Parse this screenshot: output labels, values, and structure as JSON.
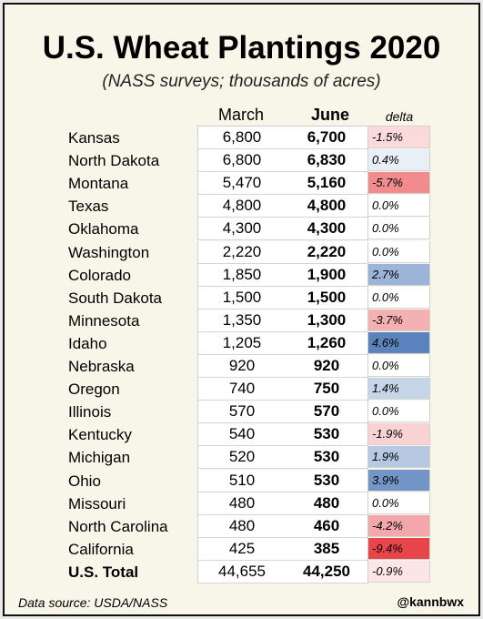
{
  "chart_data": {
    "type": "table",
    "title": "U.S. Wheat Plantings 2020",
    "subtitle": "(NASS surveys; thousands of acres)",
    "columns": [
      "March",
      "June",
      "delta"
    ],
    "rows": [
      {
        "state": "Kansas",
        "march": "6,800",
        "june": "6,700",
        "delta": "-1.5%",
        "delta_value": -1.5
      },
      {
        "state": "North Dakota",
        "march": "6,800",
        "june": "6,830",
        "delta": "0.4%",
        "delta_value": 0.4
      },
      {
        "state": "Montana",
        "march": "5,470",
        "june": "5,160",
        "delta": "-5.7%",
        "delta_value": -5.7
      },
      {
        "state": "Texas",
        "march": "4,800",
        "june": "4,800",
        "delta": "0.0%",
        "delta_value": 0.0
      },
      {
        "state": "Oklahoma",
        "march": "4,300",
        "june": "4,300",
        "delta": "0.0%",
        "delta_value": 0.0
      },
      {
        "state": "Washington",
        "march": "2,220",
        "june": "2,220",
        "delta": "0.0%",
        "delta_value": 0.0
      },
      {
        "state": "Colorado",
        "march": "1,850",
        "june": "1,900",
        "delta": "2.7%",
        "delta_value": 2.7
      },
      {
        "state": "South Dakota",
        "march": "1,500",
        "june": "1,500",
        "delta": "0.0%",
        "delta_value": 0.0
      },
      {
        "state": "Minnesota",
        "march": "1,350",
        "june": "1,300",
        "delta": "-3.7%",
        "delta_value": -3.7
      },
      {
        "state": "Idaho",
        "march": "1,205",
        "june": "1,260",
        "delta": "4.6%",
        "delta_value": 4.6
      },
      {
        "state": "Nebraska",
        "march": "920",
        "june": "920",
        "delta": "0.0%",
        "delta_value": 0.0
      },
      {
        "state": "Oregon",
        "march": "740",
        "june": "750",
        "delta": "1.4%",
        "delta_value": 1.4
      },
      {
        "state": "Illinois",
        "march": "570",
        "june": "570",
        "delta": "0.0%",
        "delta_value": 0.0
      },
      {
        "state": "Kentucky",
        "march": "540",
        "june": "530",
        "delta": "-1.9%",
        "delta_value": -1.9
      },
      {
        "state": "Michigan",
        "march": "520",
        "june": "530",
        "delta": "1.9%",
        "delta_value": 1.9
      },
      {
        "state": "Ohio",
        "march": "510",
        "june": "530",
        "delta": "3.9%",
        "delta_value": 3.9
      },
      {
        "state": "Missouri",
        "march": "480",
        "june": "480",
        "delta": "0.0%",
        "delta_value": 0.0
      },
      {
        "state": "North Carolina",
        "march": "480",
        "june": "460",
        "delta": "-4.2%",
        "delta_value": -4.2
      },
      {
        "state": "California",
        "march": "425",
        "june": "385",
        "delta": "-9.4%",
        "delta_value": -9.4
      }
    ],
    "total": {
      "state": "U.S. Total",
      "march": "44,655",
      "june": "44,250",
      "delta": "-0.9%",
      "delta_value": -0.9
    },
    "colors": {
      "negative": "#e8454b",
      "positive": "#5b83bd",
      "background": "#f8f5e9"
    }
  },
  "footer": {
    "source": "Data source: USDA/NASS",
    "handle": "@kannbwx"
  }
}
